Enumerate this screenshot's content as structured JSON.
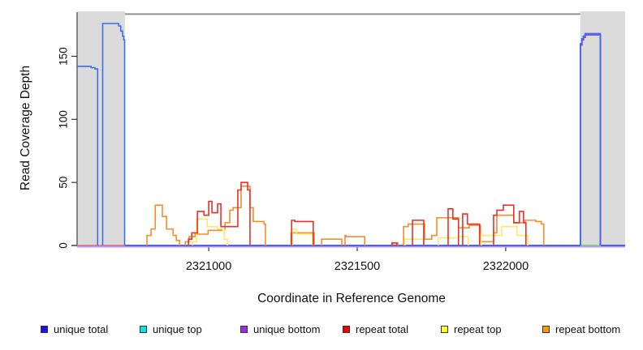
{
  "chart_data": {
    "type": "line",
    "subtype": "step-coverage",
    "title": "",
    "xlabel": "Coordinate in Reference Genome",
    "ylabel": "Read Coverage Depth",
    "xlim": [
      2320557,
      2322402
    ],
    "ylim": [
      0,
      185
    ],
    "grid": false,
    "x_ticks": [
      {
        "value": 2321000,
        "label": "2321000"
      },
      {
        "value": 2321500,
        "label": "2321500"
      },
      {
        "value": 2322000,
        "label": "2322000"
      }
    ],
    "y_ticks": [
      {
        "value": 0,
        "label": "0"
      },
      {
        "value": 50,
        "label": "50"
      },
      {
        "value": 100,
        "label": "100"
      },
      {
        "value": 150,
        "label": "150"
      }
    ],
    "shaded_regions": [
      {
        "name": "left-gray-region",
        "x": [
          2320560,
          2320718
        ],
        "color": "#DBDBDB"
      },
      {
        "name": "right-gray-region",
        "x": [
          2322251,
          2322402
        ],
        "color": "#DBDBDB"
      }
    ],
    "top_connector_line": {
      "x": [
        2320718,
        2322251
      ],
      "y_depth": 183.5,
      "color": "#8F8F8F"
    },
    "baseline_segments": [
      {
        "name": "baseline-purple-full",
        "x": [
          2320557,
          2322402
        ],
        "color": "#B39DF2",
        "offset": 1.6
      },
      {
        "name": "baseline-pink-left",
        "x": [
          2320557,
          2320718
        ],
        "color": "#EE7288",
        "offset": 0
      },
      {
        "name": "baseline-blue-middle",
        "x": [
          2320718,
          2322251
        ],
        "color": "#4253EA",
        "offset": 0
      },
      {
        "name": "baseline-green-right",
        "x": [
          2322251,
          2322320
        ],
        "color": "#85C785",
        "offset": 0
      },
      {
        "name": "baseline-blue-right",
        "x": [
          2322320,
          2322402
        ],
        "color": "#4253EA",
        "offset": 0
      }
    ],
    "series": [
      {
        "name": "repeat bottom",
        "color": "#F98C2C",
        "segments": [
          {
            "points": [
              [
                2320792,
                8
              ],
              [
                2320806,
                13
              ],
              [
                2320820,
                32
              ],
              [
                2320844,
                23
              ],
              [
                2320858,
                13
              ],
              [
                2320880,
                8
              ],
              [
                2320891,
                4
              ],
              [
                2320902,
                0
              ]
            ]
          },
          {
            "points": [
              [
                2320921,
                3
              ],
              [
                2320934,
                7
              ],
              [
                2320954,
                9
              ],
              [
                2320998,
                12
              ],
              [
                2321044,
                13
              ],
              [
                2321055,
                18
              ],
              [
                2321071,
                28
              ],
              [
                2321082,
                30
              ],
              [
                2321109,
                47
              ],
              [
                2321139,
                30
              ],
              [
                2321150,
                19
              ],
              [
                2321186,
                17
              ],
              [
                2321191,
                0
              ]
            ]
          },
          {
            "points": [
              [
                2321277,
                10
              ],
              [
                2321355,
                0
              ]
            ]
          },
          {
            "points": [
              [
                2321380,
                5
              ],
              [
                2321448,
                0
              ]
            ]
          },
          {
            "points": [
              [
                2321459,
                8
              ],
              [
                2321462,
                7
              ],
              [
                2321525,
                0
              ]
            ]
          },
          {
            "points": [
              [
                2321620,
                2
              ],
              [
                2321637,
                0
              ]
            ]
          },
          {
            "points": [
              [
                2321656,
                15
              ],
              [
                2321672,
                17
              ],
              [
                2321727,
                5
              ],
              [
                2321751,
                8
              ],
              [
                2321768,
                22
              ],
              [
                2321841,
                14
              ],
              [
                2321877,
                16
              ],
              [
                2321915,
                3
              ],
              [
                2321959,
                10
              ],
              [
                2321970,
                24
              ],
              [
                2322027,
                18
              ],
              [
                2322065,
                20
              ],
              [
                2322101,
                19
              ],
              [
                2322120,
                17
              ],
              [
                2322128,
                0
              ]
            ]
          }
        ]
      },
      {
        "name": "repeat top",
        "color": "#FFE96B",
        "segments": [
          {
            "points": [
              [
                2320945,
                3
              ],
              [
                2320959,
                21
              ],
              [
                2320995,
                15
              ],
              [
                2321030,
                13
              ],
              [
                2321052,
                5
              ],
              [
                2321063,
                0
              ]
            ]
          },
          {
            "points": [
              [
                2321281,
                13
              ],
              [
                2321295,
                9
              ],
              [
                2321350,
                0
              ]
            ]
          },
          {
            "points": [
              [
                2321661,
                5
              ],
              [
                2321724,
                0
              ]
            ]
          },
          {
            "points": [
              [
                2321773,
                6
              ],
              [
                2321841,
                7
              ],
              [
                2321874,
                0
              ]
            ]
          },
          {
            "points": [
              [
                2321917,
                8
              ],
              [
                2321986,
                15
              ],
              [
                2322038,
                8
              ],
              [
                2322074,
                0
              ]
            ]
          }
        ]
      },
      {
        "name": "repeat total",
        "color": "#E63329",
        "segments": [
          {
            "points": [
              [
                2320932,
                5
              ],
              [
                2320943,
                10
              ],
              [
                2320962,
                27
              ],
              [
                2320984,
                24
              ],
              [
                2321000,
                35
              ],
              [
                2321011,
                26
              ],
              [
                2321030,
                33
              ],
              [
                2321041,
                15
              ],
              [
                2321098,
                44
              ],
              [
                2321109,
                50
              ],
              [
                2321131,
                44
              ],
              [
                2321139,
                0
              ]
            ]
          },
          {
            "points": [
              [
                2321279,
                20
              ],
              [
                2321290,
                19
              ],
              [
                2321352,
                0
              ]
            ]
          },
          {
            "points": [
              [
                2321617,
                2
              ],
              [
                2321633,
                0
              ]
            ]
          },
          {
            "points": [
              [
                2321686,
                20
              ],
              [
                2321724,
                0
              ]
            ]
          },
          {
            "points": [
              [
                2321806,
                29
              ],
              [
                2321822,
                21
              ],
              [
                2321841,
                0
              ]
            ]
          },
          {
            "points": [
              [
                2321855,
                25
              ],
              [
                2321871,
                17
              ],
              [
                2321912,
                0
              ]
            ]
          },
          {
            "points": [
              [
                2321959,
                24
              ],
              [
                2321970,
                28
              ],
              [
                2321992,
                32
              ],
              [
                2322027,
                18
              ],
              [
                2322046,
                27
              ],
              [
                2322060,
                18
              ],
              [
                2322068,
                0
              ]
            ]
          }
        ]
      },
      {
        "name": "unique bottom",
        "color": "#7C3AE0",
        "segments": [
          {
            "points": [
              [
                2322252,
                159
              ],
              [
                2322257,
                163
              ],
              [
                2322262,
                165
              ],
              [
                2322268,
                167
              ],
              [
                2322319,
                0
              ]
            ]
          }
        ]
      },
      {
        "name": "unique total",
        "color": "#3D6FE8",
        "segments": [
          {
            "from_edge": true,
            "points": [
              [
                2320557,
                142
              ],
              [
                2320604,
                141
              ],
              [
                2320617,
                140
              ],
              [
                2320626,
                0
              ]
            ]
          },
          {
            "points": [
              [
                2320643,
                176
              ],
              [
                2320697,
                174
              ],
              [
                2320704,
                170
              ],
              [
                2320710,
                166
              ],
              [
                2320714,
                163
              ],
              [
                2320717,
                0
              ]
            ]
          },
          {
            "points": [
              [
                2322251,
                160
              ],
              [
                2322256,
                164
              ],
              [
                2322261,
                166
              ],
              [
                2322267,
                168
              ],
              [
                2322318,
                0
              ]
            ]
          }
        ]
      }
    ],
    "legend": {
      "position": "bottom",
      "items": [
        {
          "label": "unique total",
          "color": "#1414E8"
        },
        {
          "label": "unique top",
          "color": "#00E5E5"
        },
        {
          "label": "unique bottom",
          "color": "#9B30D9"
        },
        {
          "label": "repeat total",
          "color": "#EE0000"
        },
        {
          "label": "repeat top",
          "color": "#FFFF2E"
        },
        {
          "label": "repeat bottom",
          "color": "#F59E0B"
        }
      ]
    }
  },
  "layout_text": {
    "y_axis_title": "Read Coverage Depth",
    "x_axis_title": "Coordinate in Reference Genome"
  }
}
